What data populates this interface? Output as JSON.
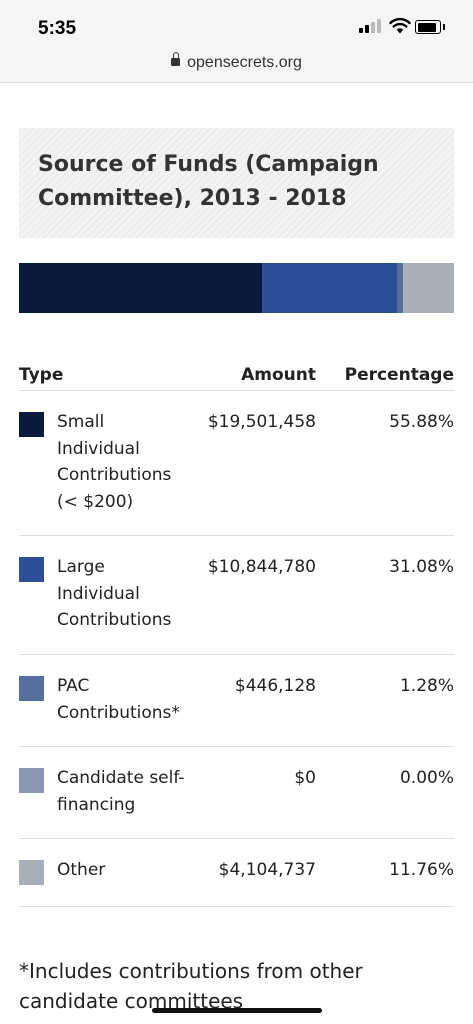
{
  "status_bar": {
    "time": "5:35"
  },
  "browser": {
    "url": "opensecrets.org"
  },
  "section": {
    "title": "Source of Funds (Campaign Committee), 2013 - 2018"
  },
  "table": {
    "headers": {
      "type": "Type",
      "amount": "Amount",
      "percentage": "Percentage"
    },
    "rows": [
      {
        "label": "Small Individual Contributions (< $200)",
        "amount": "$19,501,458",
        "percentage": "55.88%",
        "color": "#0b1a3b"
      },
      {
        "label": "Large Individual Contributions",
        "amount": "$10,844,780",
        "percentage": "31.08%",
        "color": "#2d4f98"
      },
      {
        "label": "PAC Contributions*",
        "amount": "$446,128",
        "percentage": "1.28%",
        "color": "#55709f"
      },
      {
        "label": "Candidate self-financing",
        "amount": "$0",
        "percentage": "0.00%",
        "color": "#8996b6"
      },
      {
        "label": "Other",
        "amount": "$4,104,737",
        "percentage": "11.76%",
        "color": "#a7afbb"
      }
    ]
  },
  "chart_data": {
    "type": "bar",
    "categories": [
      "Small Individual Contributions (< $200)",
      "Large Individual Contributions",
      "PAC Contributions*",
      "Candidate self-financing",
      "Other"
    ],
    "values": [
      55.88,
      31.08,
      1.28,
      0.0,
      11.76
    ],
    "stacked": true,
    "orientation": "horizontal",
    "colors": [
      "#0b1a3b",
      "#2d4f98",
      "#55709f",
      "#8996b6",
      "#a7afbb"
    ]
  },
  "footnote": "*Includes contributions from other candidate committees"
}
